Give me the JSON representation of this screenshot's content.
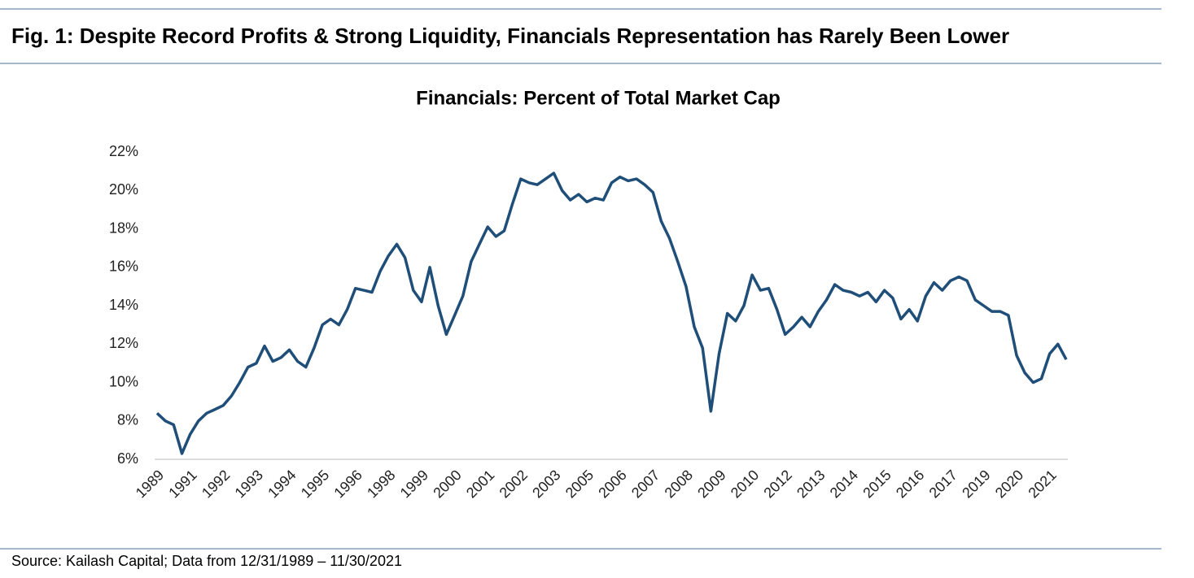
{
  "header": {
    "title": "Fig. 1: Despite Record Profits & Strong Liquidity, Financials Representation has Rarely Been Lower"
  },
  "chart_data": {
    "type": "line",
    "title": "Financials: Percent of Total Market Cap",
    "categories": [
      "1989",
      null,
      null,
      null,
      "1991",
      null,
      null,
      null,
      "1992",
      null,
      null,
      null,
      "1993",
      null,
      null,
      null,
      "1994",
      null,
      null,
      null,
      "1995",
      null,
      null,
      null,
      "1996",
      null,
      null,
      null,
      "1998",
      null,
      null,
      null,
      "1999",
      null,
      null,
      null,
      "2000",
      null,
      null,
      null,
      "2001",
      null,
      null,
      null,
      "2002",
      null,
      null,
      null,
      "2003",
      null,
      null,
      null,
      "2005",
      null,
      null,
      null,
      "2006",
      null,
      null,
      null,
      "2007",
      null,
      null,
      null,
      "2008",
      null,
      null,
      null,
      "2009",
      null,
      null,
      null,
      "2010",
      null,
      null,
      null,
      "2012",
      null,
      null,
      null,
      "2013",
      null,
      null,
      null,
      "2014",
      null,
      null,
      null,
      "2015",
      null,
      null,
      null,
      "2016",
      null,
      null,
      null,
      "2017",
      null,
      null,
      null,
      "2019",
      null,
      null,
      null,
      "2020",
      null,
      null,
      null,
      "2021",
      null,
      null
    ],
    "values": [
      8.4,
      8.0,
      7.8,
      6.3,
      7.3,
      8.0,
      8.4,
      8.6,
      8.8,
      9.3,
      10.0,
      10.8,
      11.0,
      11.9,
      11.1,
      11.3,
      11.7,
      11.1,
      10.8,
      11.8,
      13.0,
      13.3,
      13.0,
      13.8,
      14.9,
      14.8,
      14.7,
      15.8,
      16.6,
      17.2,
      16.5,
      14.8,
      14.2,
      16.0,
      14.0,
      12.5,
      13.5,
      14.5,
      16.3,
      17.2,
      18.1,
      17.6,
      17.9,
      19.3,
      20.6,
      20.4,
      20.3,
      20.6,
      20.9,
      20.0,
      19.5,
      19.8,
      19.4,
      19.6,
      19.5,
      20.4,
      20.7,
      20.5,
      20.6,
      20.3,
      19.9,
      18.4,
      17.5,
      16.3,
      15.0,
      12.9,
      11.8,
      8.5,
      11.5,
      13.6,
      13.2,
      14.0,
      15.6,
      14.8,
      14.9,
      13.8,
      12.5,
      12.9,
      13.4,
      12.9,
      13.7,
      14.3,
      15.1,
      14.8,
      14.7,
      14.5,
      14.7,
      14.2,
      14.8,
      14.4,
      13.3,
      13.8,
      13.2,
      14.5,
      15.2,
      14.8,
      15.3,
      15.5,
      15.3,
      14.3,
      14.0,
      13.7,
      13.7,
      13.5,
      11.4,
      10.5,
      10.0,
      10.2,
      11.5,
      12.0,
      11.2
    ],
    "color": "#1f4e79",
    "ylim": [
      6,
      22
    ],
    "yticks": [
      {
        "value": 6,
        "label": "6%"
      },
      {
        "value": 8,
        "label": "8%"
      },
      {
        "value": 10,
        "label": "10%"
      },
      {
        "value": 12,
        "label": "12%"
      },
      {
        "value": 14,
        "label": "14%"
      },
      {
        "value": 16,
        "label": "16%"
      },
      {
        "value": 18,
        "label": "18%"
      },
      {
        "value": 20,
        "label": "20%"
      },
      {
        "value": 22,
        "label": "22%"
      }
    ],
    "grid": false
  },
  "footer": {
    "source": "Source: Kailash Capital; Data from 12/31/1989 – 11/30/2021"
  }
}
